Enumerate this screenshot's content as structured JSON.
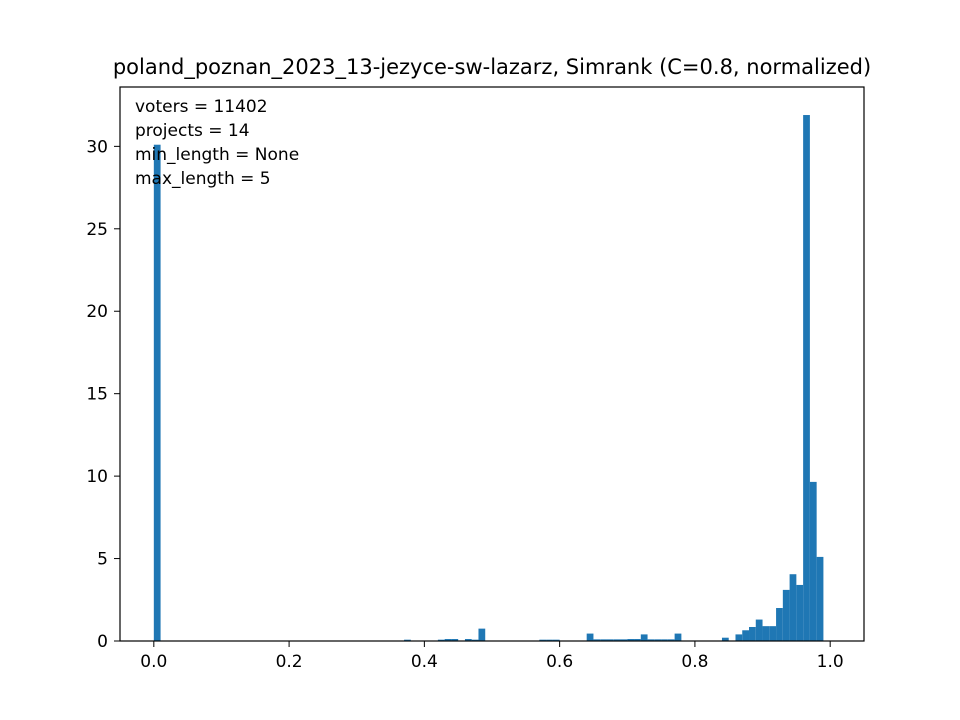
{
  "chart_data": {
    "type": "histogram",
    "title": "poland_poznan_2023_13-jezyce-sw-lazarz, Simrank (C=0.8, normalized)",
    "xlabel": "",
    "ylabel": "",
    "annotations": [
      "voters = 11402",
      "projects = 14",
      "min_length = None",
      "max_length = 5"
    ],
    "xlim": [
      -0.05,
      1.05
    ],
    "ylim": [
      0,
      33.6
    ],
    "xticks": [
      0.0,
      0.2,
      0.4,
      0.6,
      0.8,
      1.0
    ],
    "xtick_labels": [
      "0.0",
      "0.2",
      "0.4",
      "0.6",
      "0.8",
      "1.0"
    ],
    "yticks": [
      0,
      5,
      10,
      15,
      20,
      25,
      30
    ],
    "ytick_labels": [
      "0",
      "5",
      "10",
      "15",
      "20",
      "25",
      "30"
    ],
    "bar_color": "#1f77b4",
    "bin_width": 0.01,
    "bins": [
      {
        "x": 0.0,
        "value": 30.1
      },
      {
        "x": 0.37,
        "value": 0.08
      },
      {
        "x": 0.42,
        "value": 0.08
      },
      {
        "x": 0.43,
        "value": 0.12
      },
      {
        "x": 0.44,
        "value": 0.12
      },
      {
        "x": 0.46,
        "value": 0.12
      },
      {
        "x": 0.47,
        "value": 0.08
      },
      {
        "x": 0.48,
        "value": 0.75
      },
      {
        "x": 0.57,
        "value": 0.08
      },
      {
        "x": 0.58,
        "value": 0.08
      },
      {
        "x": 0.59,
        "value": 0.08
      },
      {
        "x": 0.64,
        "value": 0.45
      },
      {
        "x": 0.65,
        "value": 0.1
      },
      {
        "x": 0.66,
        "value": 0.1
      },
      {
        "x": 0.67,
        "value": 0.1
      },
      {
        "x": 0.68,
        "value": 0.1
      },
      {
        "x": 0.69,
        "value": 0.1
      },
      {
        "x": 0.7,
        "value": 0.12
      },
      {
        "x": 0.71,
        "value": 0.12
      },
      {
        "x": 0.72,
        "value": 0.4
      },
      {
        "x": 0.73,
        "value": 0.1
      },
      {
        "x": 0.74,
        "value": 0.1
      },
      {
        "x": 0.75,
        "value": 0.1
      },
      {
        "x": 0.76,
        "value": 0.1
      },
      {
        "x": 0.77,
        "value": 0.45
      },
      {
        "x": 0.84,
        "value": 0.2
      },
      {
        "x": 0.86,
        "value": 0.4
      },
      {
        "x": 0.87,
        "value": 0.65
      },
      {
        "x": 0.88,
        "value": 0.85
      },
      {
        "x": 0.89,
        "value": 1.3
      },
      {
        "x": 0.9,
        "value": 0.9
      },
      {
        "x": 0.91,
        "value": 0.9
      },
      {
        "x": 0.92,
        "value": 2.0
      },
      {
        "x": 0.93,
        "value": 3.1
      },
      {
        "x": 0.94,
        "value": 4.05
      },
      {
        "x": 0.95,
        "value": 3.4
      },
      {
        "x": 0.96,
        "value": 31.9
      },
      {
        "x": 0.97,
        "value": 9.65
      },
      {
        "x": 0.98,
        "value": 5.1
      }
    ]
  }
}
